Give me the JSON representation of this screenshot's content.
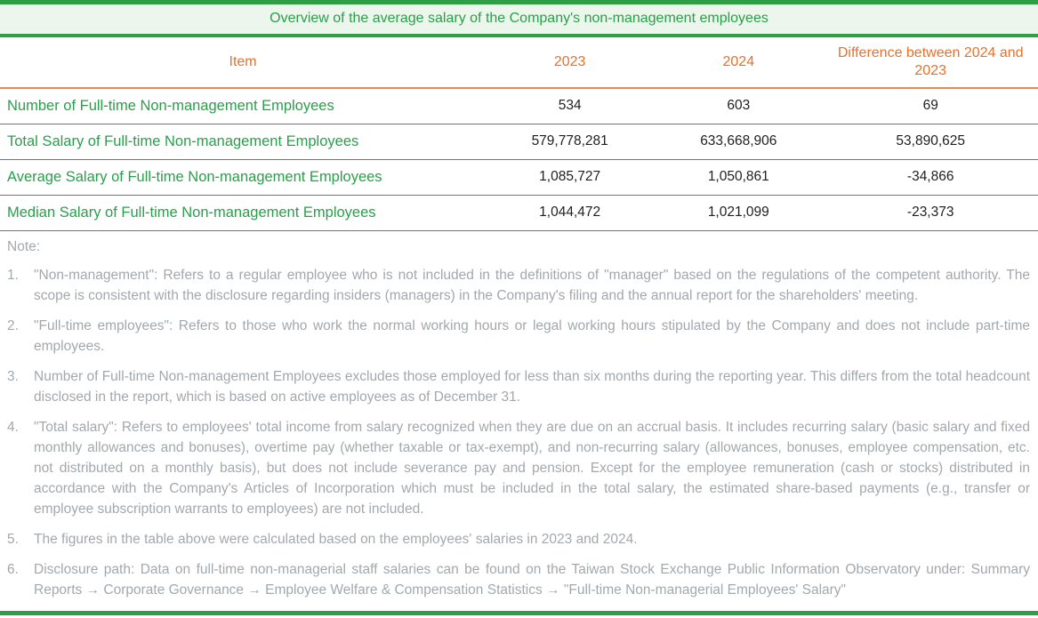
{
  "title": "Overview of the average salary of the Company's non-management employees",
  "colors": {
    "green_line": "#2f9e44",
    "green_text": "#28a049",
    "light_green_bg": "#edf6ed",
    "orange_text": "#e8702a",
    "orange_line": "#e88b52",
    "value_text": "#1f1f1f",
    "note_gray": "#a3a8ac"
  },
  "table": {
    "columns": [
      "Item",
      "2023",
      "2024",
      "Difference between 2024 and 2023"
    ],
    "rows": [
      {
        "item": "Number of Full-time Non-management Employees",
        "y2023": "534",
        "y2024": "603",
        "diff": "69"
      },
      {
        "item": "Total Salary of Full-time Non-management Employees",
        "y2023": "579,778,281",
        "y2024": "633,668,906",
        "diff": "53,890,625"
      },
      {
        "item": "Average Salary of Full-time Non-management Employees",
        "y2023": "1,085,727",
        "y2024": "1,050,861",
        "diff": "-34,866"
      },
      {
        "item": "Median Salary of Full-time Non-management Employees",
        "y2023": "1,044,472",
        "y2024": "1,021,099",
        "diff": "-23,373"
      }
    ]
  },
  "notes": {
    "label": "Note:",
    "items": [
      {
        "num": "1.",
        "text": "\"Non-management\": Refers to a regular employee who is not included in the definitions of \"manager\" based on the regulations of the competent authority. The scope is consistent with the disclosure regarding insiders (managers) in the Company's filing and the annual report for the shareholders' meeting."
      },
      {
        "num": "2.",
        "text": "\"Full-time employees\": Refers to those who work the normal working hours or legal working hours stipulated by the Company and does not include part-time employees."
      },
      {
        "num": "3.",
        "text": "Number of Full-time Non-management Employees excludes those employed for less than six months during the reporting year. This differs from the total headcount disclosed in the report, which is based on active employees as of December 31."
      },
      {
        "num": "4.",
        "text": "\"Total salary\": Refers to employees' total income from salary recognized when they are due on an accrual basis. It includes recurring salary (basic salary and fixed monthly allowances and bonuses), overtime pay (whether taxable or tax-exempt), and non-recurring salary (allowances, bonuses, employee compensation, etc. not distributed on a monthly basis), but does not include severance pay and pension. Except for the employee remuneration (cash or stocks) distributed in accordance with the Company's Articles of Incorporation which must be included in the total salary, the estimated share-based payments (e.g., transfer or employee subscription warrants to employees) are not included."
      },
      {
        "num": "5.",
        "text": "The figures in the table above were calculated based on the employees' salaries in 2023 and 2024."
      },
      {
        "num": "6.",
        "text": "Disclosure path: Data on full-time non-managerial staff salaries can be found on the Taiwan Stock Exchange Public Information Observatory under: Summary Reports → Corporate Governance → Employee Welfare & Compensation Statistics → \"Full-time Non-managerial Employees' Salary\""
      }
    ]
  }
}
